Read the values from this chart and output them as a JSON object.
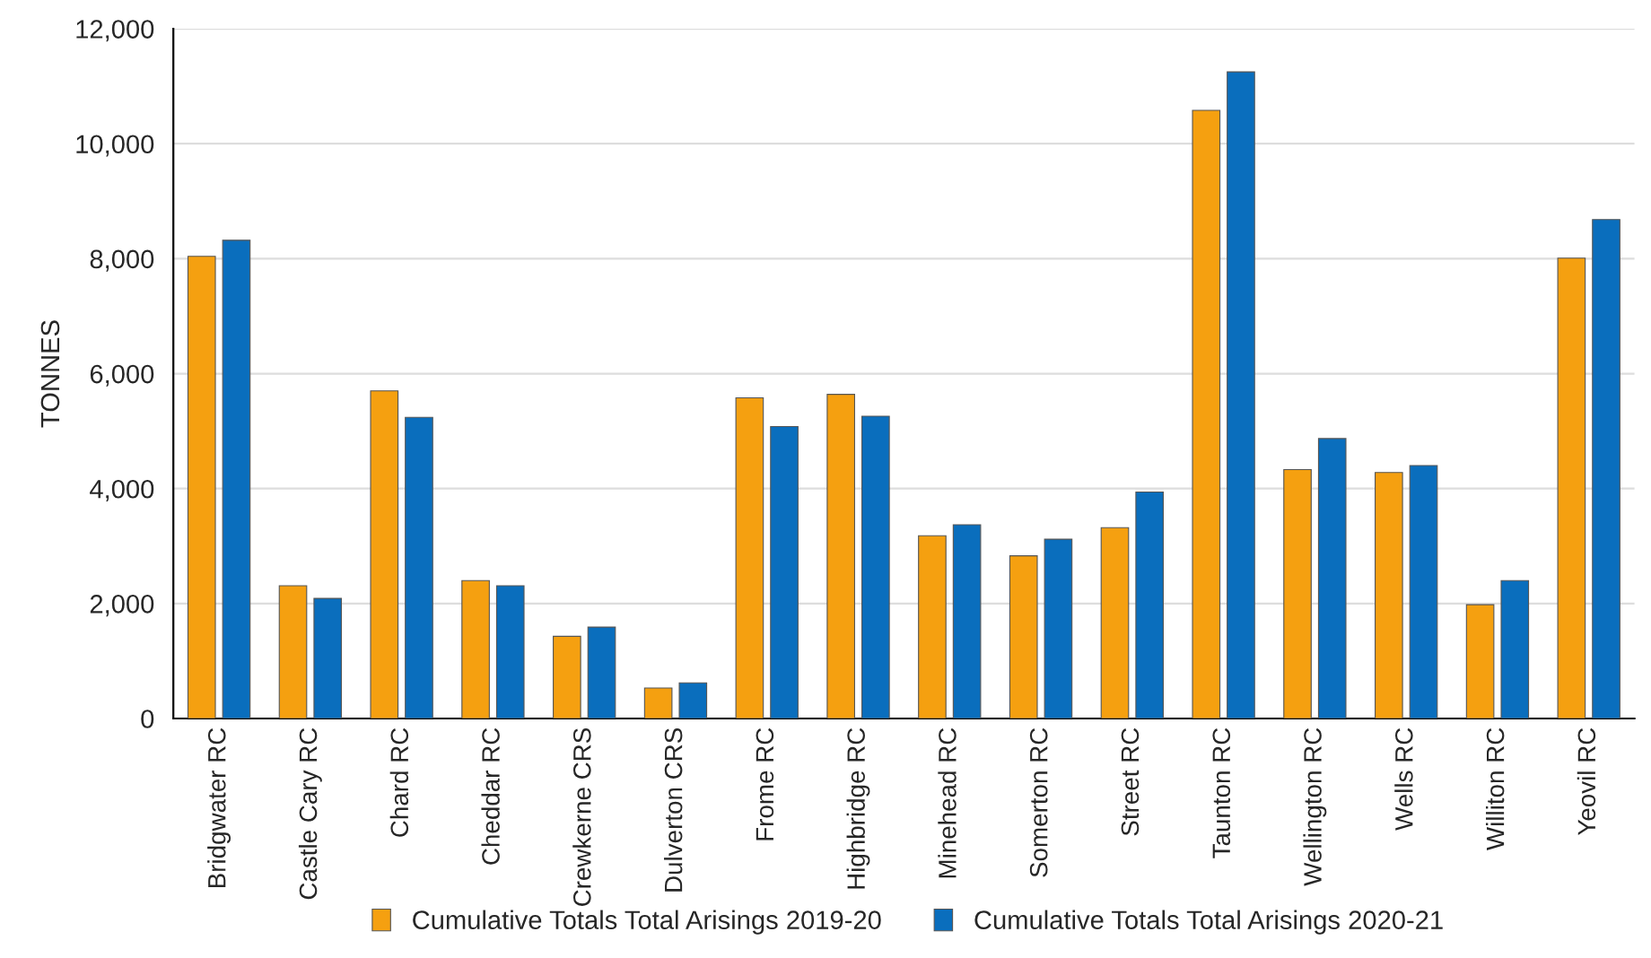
{
  "chart_data": {
    "type": "bar",
    "ylabel": "TONNES",
    "categories": [
      "Bridgwater RC",
      "Castle Cary RC",
      "Chard RC",
      "Cheddar RC",
      "Crewkerne CRS",
      "Dulverton CRS",
      "Frome RC",
      "Highbridge RC",
      "Minehead RC",
      "Somerton RC",
      "Street RC",
      "Taunton RC",
      "Wellington RC",
      "Wells RC",
      "Williton RC",
      "Yeovil RC"
    ],
    "series": [
      {
        "name": "Cumulative Totals Total Arisings 2019-20",
        "color": "#f5a010",
        "values": [
          8040,
          2310,
          5700,
          2400,
          1430,
          530,
          5580,
          5640,
          3180,
          2830,
          3320,
          10580,
          4330,
          4280,
          1980,
          8010
        ]
      },
      {
        "name": "Cumulative Totals Total Arisings 2020-21",
        "color": "#0a6ebd",
        "values": [
          8320,
          2090,
          5240,
          2310,
          1590,
          620,
          5080,
          5260,
          3370,
          3120,
          3940,
          11250,
          4870,
          4400,
          2400,
          8680
        ]
      }
    ],
    "ylim": [
      0,
      12000
    ],
    "yticks": [
      {
        "value": 0,
        "label": "0"
      },
      {
        "value": 2000,
        "label": "2,000"
      },
      {
        "value": 4000,
        "label": "4,000"
      },
      {
        "value": 6000,
        "label": "6,000"
      },
      {
        "value": 8000,
        "label": "8,000"
      },
      {
        "value": 10000,
        "label": "10,000"
      },
      {
        "value": 12000,
        "label": "12,000"
      }
    ],
    "grid": "y",
    "legend": "bottom"
  }
}
